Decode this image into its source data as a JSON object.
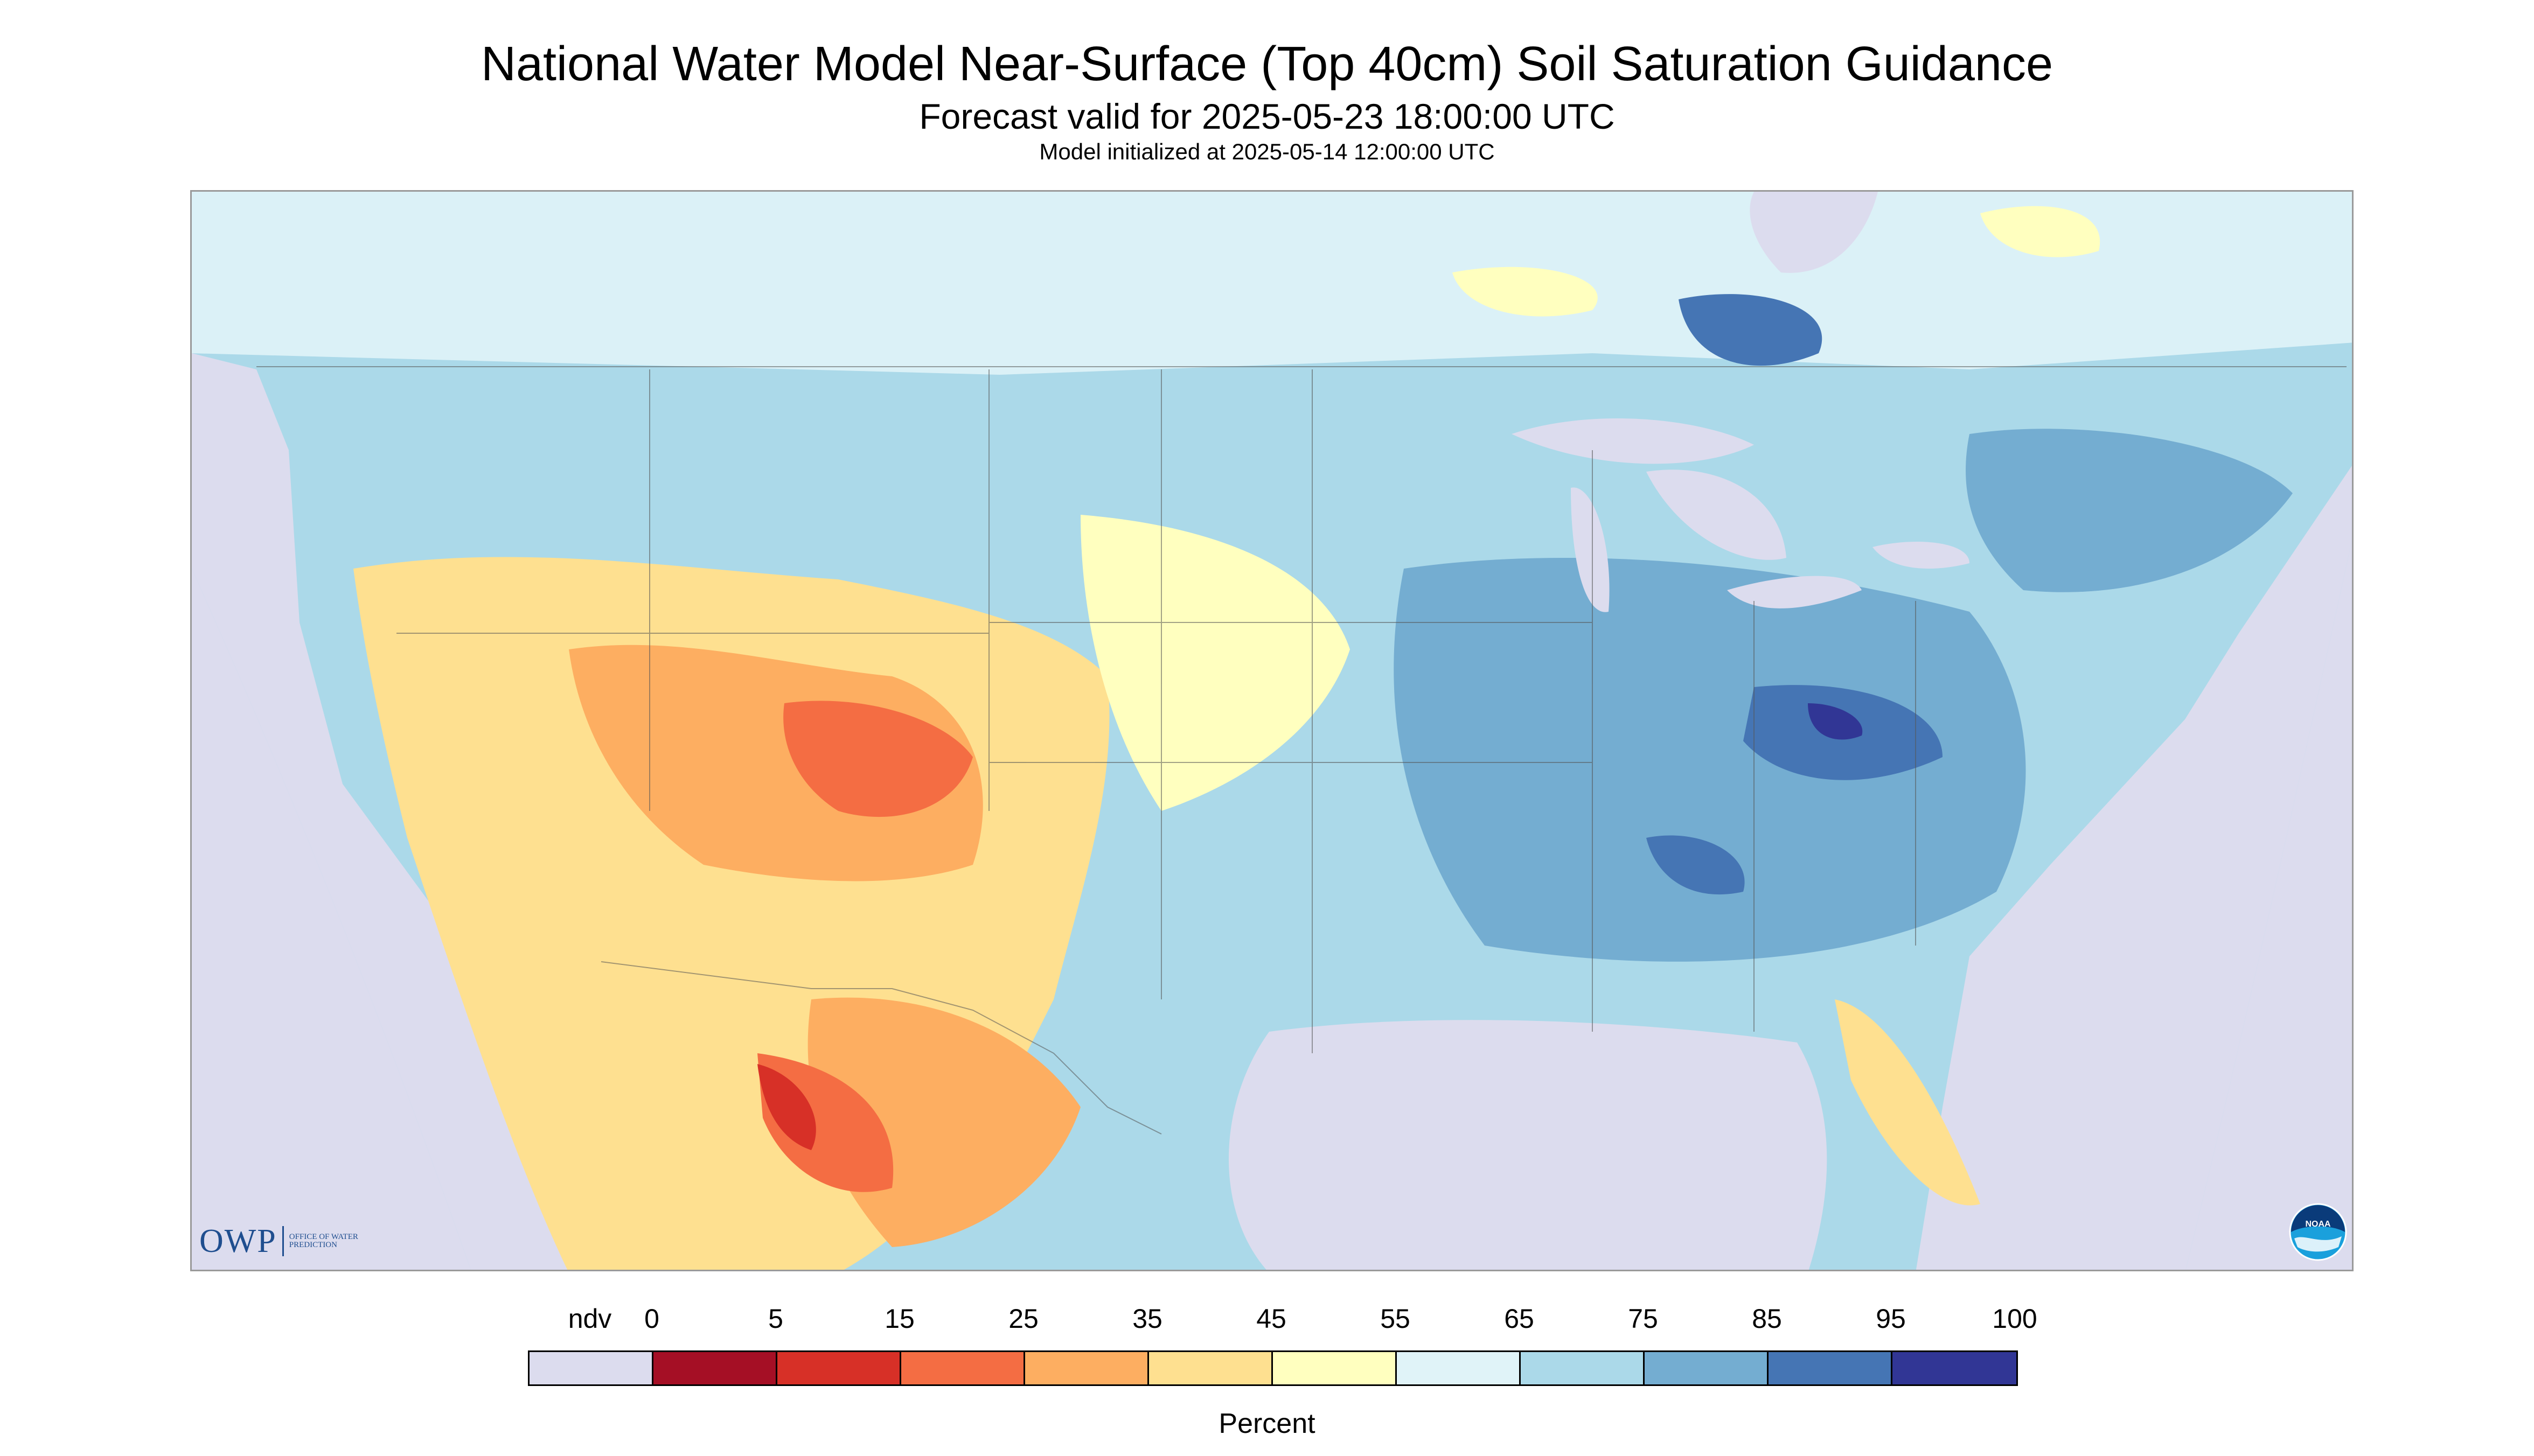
{
  "title": "National Water Model Near-Surface (Top 40cm) Soil Saturation Guidance",
  "subtitle": "Forecast valid for 2025-05-23 18:00:00 UTC",
  "initialized": "Model initialized at 2025-05-14 12:00:00 UTC",
  "logos": {
    "owp_big": "OWP",
    "owp_small": "OFFICE OF WATER PREDICTION",
    "noaa": "NOAA"
  },
  "legend": {
    "units": "Percent",
    "ticks": [
      "ndv",
      "0",
      "5",
      "15",
      "25",
      "35",
      "45",
      "55",
      "65",
      "75",
      "85",
      "95",
      "100"
    ],
    "colors": [
      "#dcdcee",
      "#a50f25",
      "#d73027",
      "#f46d43",
      "#fdae61",
      "#fee090",
      "#ffffbf",
      "#e0f3f8",
      "#abd9e9",
      "#74add1",
      "#4575b4",
      "#313695"
    ]
  },
  "map_colors": {
    "nodata": "#dcdcee",
    "water": "#dcdcee",
    "wet": "#74add1",
    "very_wet": "#4575b4",
    "moist": "#abd9e9",
    "medium": "#e0f3f8",
    "dryish": "#ffffbf",
    "dry": "#fee090",
    "drier": "#fdae61",
    "very_dry": "#f46d43",
    "driest": "#d73027"
  }
}
